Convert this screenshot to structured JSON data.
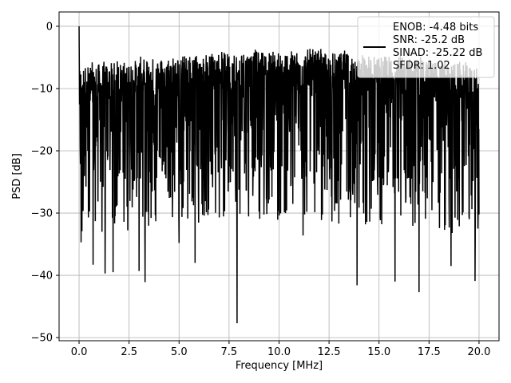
{
  "chart_data": {
    "type": "line",
    "title": "",
    "xlabel": "Frequency [MHz]",
    "ylabel": "PSD [dB]",
    "xlim": [
      -1.0,
      21.0
    ],
    "ylim": [
      -50.5,
      2.3
    ],
    "xticks": [
      0.0,
      2.5,
      5.0,
      7.5,
      10.0,
      12.5,
      15.0,
      17.5,
      20.0
    ],
    "xtick_labels": [
      "0.0",
      "2.5",
      "5.0",
      "7.5",
      "10.0",
      "12.5",
      "15.0",
      "17.5",
      "20.0"
    ],
    "yticks": [
      0,
      -10,
      -20,
      -30,
      -40,
      -50
    ],
    "ytick_labels": [
      "0",
      "−10",
      "−20",
      "−30",
      "−40",
      "−50"
    ],
    "grid": true,
    "legend": {
      "placement": "upper right",
      "entries": [
        "ENOB: -4.48 bits",
        "SNR: -25.2 dB",
        "SINAD: -25.22 dB",
        "SFDR: 1.02"
      ]
    },
    "series": [
      {
        "color": "#000000",
        "description_of_values": "dense noise spectrum from 0 to 20 MHz",
        "peak": {
          "x": 0.0,
          "y": 0.0
        },
        "upper_envelope_db": -4,
        "typical_range_db": [
          -25,
          -5
        ],
        "notable_minima": [
          {
            "x": 0.1,
            "y": -34.7
          },
          {
            "x": 0.7,
            "y": -38.3
          },
          {
            "x": 1.3,
            "y": -39.7
          },
          {
            "x": 1.7,
            "y": -39.5
          },
          {
            "x": 3.0,
            "y": -39.3
          },
          {
            "x": 3.3,
            "y": -41.1
          },
          {
            "x": 5.0,
            "y": -34.8
          },
          {
            "x": 5.8,
            "y": -38.0
          },
          {
            "x": 7.9,
            "y": -47.7
          },
          {
            "x": 11.2,
            "y": -33.6
          },
          {
            "x": 13.9,
            "y": -41.6
          },
          {
            "x": 15.8,
            "y": -41.0
          },
          {
            "x": 17.0,
            "y": -42.7
          },
          {
            "x": 18.6,
            "y": -38.5
          },
          {
            "x": 19.8,
            "y": -40.9
          }
        ]
      }
    ]
  }
}
